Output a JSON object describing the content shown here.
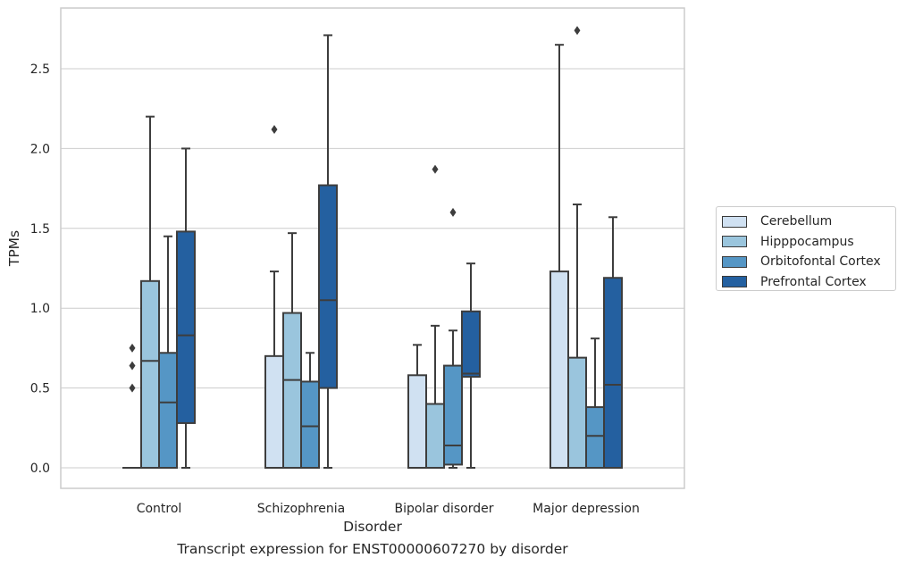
{
  "chart_data": {
    "type": "box",
    "caption": "Transcript expression for ENST00000607270 by disorder",
    "xlabel": "Disorder",
    "ylabel": "TPMs",
    "ylim": [
      -0.13,
      2.88
    ],
    "yticks": [
      0.0,
      0.5,
      1.0,
      1.5,
      2.0,
      2.5
    ],
    "ytick_labels": [
      "0.0",
      "0.5",
      "1.0",
      "1.5",
      "2.0",
      "2.5"
    ],
    "grid": true,
    "legend_position": "right",
    "categories": [
      "Control",
      "Schizophrenia",
      "Bipolar disorder",
      "Major depression"
    ],
    "series": [
      {
        "name": "Cerebellum",
        "color": "#d0e1f2",
        "boxes": [
          {
            "whislo": 0.0,
            "q1": 0.0,
            "med": 0.0,
            "q3": 0.0,
            "whishi": 0.0,
            "fliers": [
              0.5,
              0.64,
              0.75
            ]
          },
          {
            "whislo": 0.0,
            "q1": 0.0,
            "med": 0.0,
            "q3": 0.7,
            "whishi": 1.23,
            "fliers": [
              2.12
            ]
          },
          {
            "whislo": 0.0,
            "q1": 0.0,
            "med": 0.0,
            "q3": 0.58,
            "whishi": 0.77,
            "fliers": []
          },
          {
            "whislo": 0.0,
            "q1": 0.0,
            "med": 0.0,
            "q3": 1.23,
            "whishi": 2.65,
            "fliers": []
          }
        ]
      },
      {
        "name": "Hipppocampus",
        "color": "#9ac5dd",
        "boxes": [
          {
            "whislo": 0.0,
            "q1": 0.0,
            "med": 0.67,
            "q3": 1.17,
            "whishi": 2.2,
            "fliers": []
          },
          {
            "whislo": 0.0,
            "q1": 0.0,
            "med": 0.55,
            "q3": 0.97,
            "whishi": 1.47,
            "fliers": []
          },
          {
            "whislo": 0.0,
            "q1": 0.0,
            "med": 0.0,
            "q3": 0.4,
            "whishi": 0.89,
            "fliers": [
              1.87
            ]
          },
          {
            "whislo": 0.0,
            "q1": 0.0,
            "med": 0.0,
            "q3": 0.69,
            "whishi": 1.65,
            "fliers": [
              2.74
            ]
          }
        ]
      },
      {
        "name": "Orbitofontal Cortex",
        "color": "#5596c5",
        "boxes": [
          {
            "whislo": 0.0,
            "q1": 0.0,
            "med": 0.41,
            "q3": 0.72,
            "whishi": 1.45,
            "fliers": []
          },
          {
            "whislo": 0.0,
            "q1": 0.0,
            "med": 0.26,
            "q3": 0.54,
            "whishi": 0.72,
            "fliers": []
          },
          {
            "whislo": 0.0,
            "q1": 0.02,
            "med": 0.14,
            "q3": 0.64,
            "whishi": 0.86,
            "fliers": [
              1.6
            ]
          },
          {
            "whislo": 0.0,
            "q1": 0.0,
            "med": 0.2,
            "q3": 0.38,
            "whishi": 0.81,
            "fliers": []
          }
        ]
      },
      {
        "name": "Prefrontal Cortex",
        "color": "#2460a0",
        "boxes": [
          {
            "whislo": 0.0,
            "q1": 0.28,
            "med": 0.83,
            "q3": 1.48,
            "whishi": 2.0,
            "fliers": []
          },
          {
            "whislo": 0.0,
            "q1": 0.5,
            "med": 1.05,
            "q3": 1.77,
            "whishi": 2.71,
            "fliers": []
          },
          {
            "whislo": 0.0,
            "q1": 0.57,
            "med": 0.59,
            "q3": 0.98,
            "whishi": 1.28,
            "fliers": []
          },
          {
            "whislo": 0.0,
            "q1": 0.0,
            "med": 0.52,
            "q3": 1.19,
            "whishi": 1.57,
            "fliers": []
          }
        ]
      }
    ]
  }
}
